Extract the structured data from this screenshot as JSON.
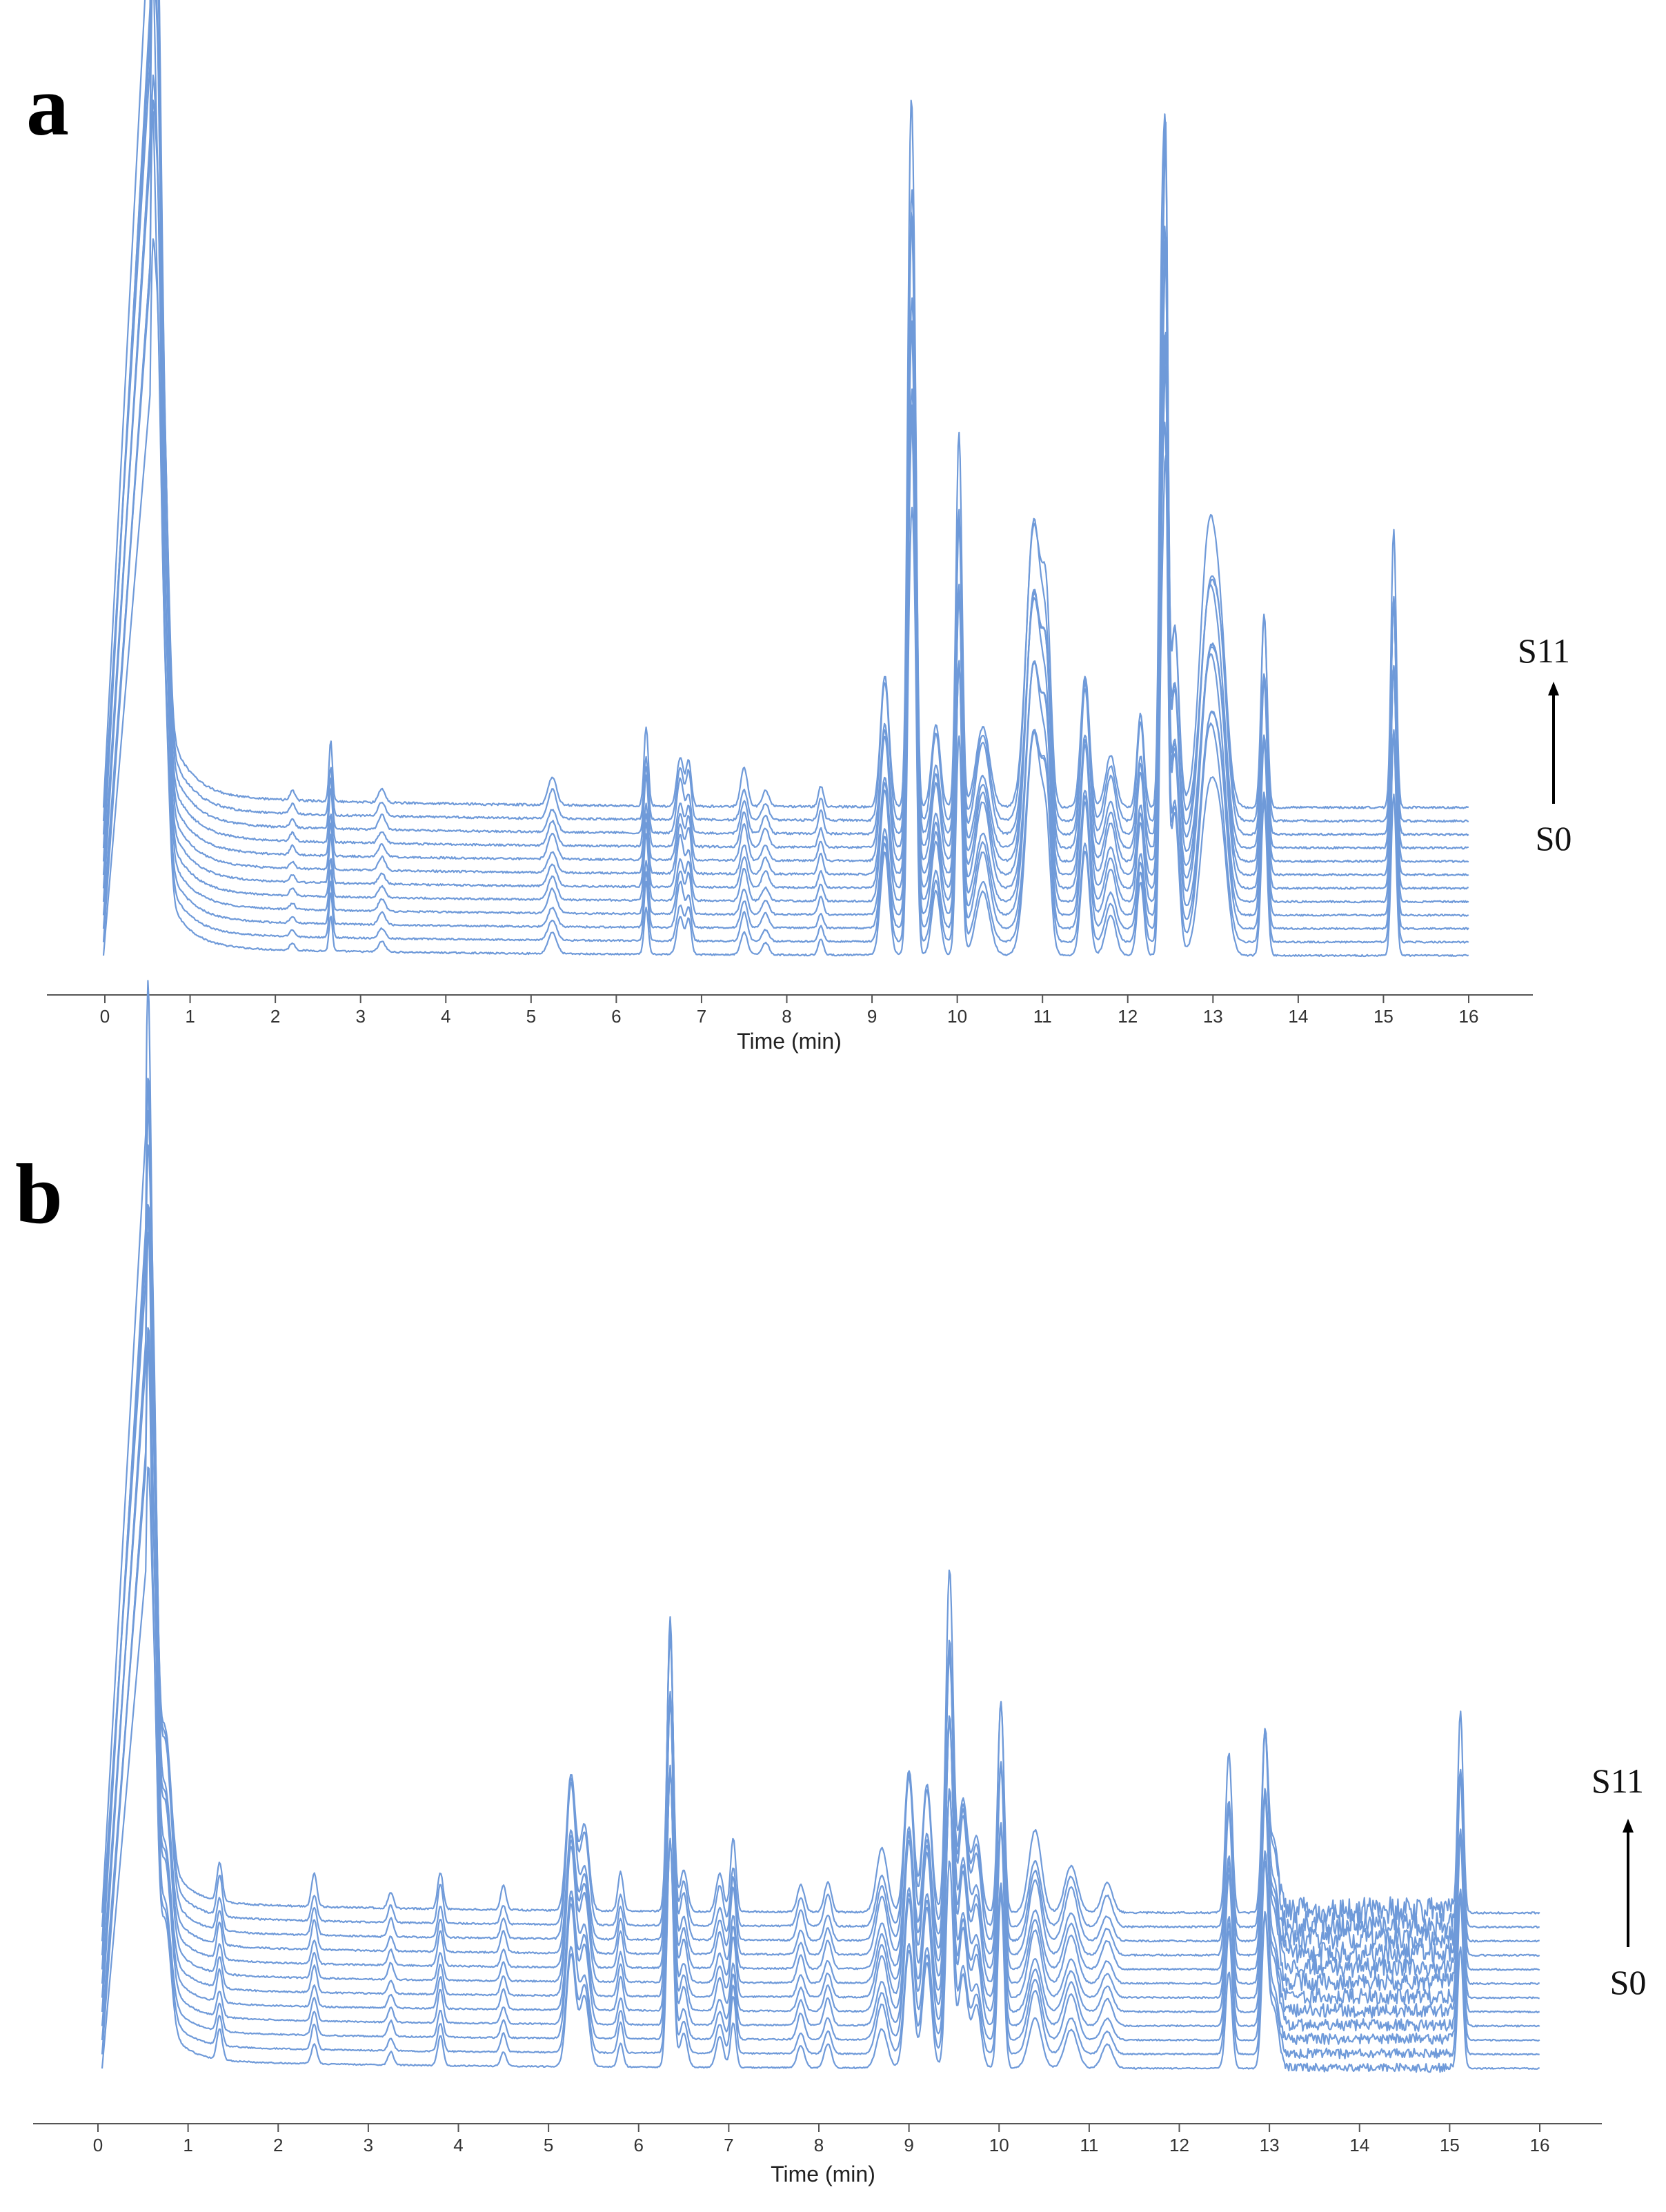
{
  "colors": {
    "trace": "#6f9ad9",
    "axis": "#555555"
  },
  "chart_data": [
    {
      "type": "line",
      "panel_label": "a",
      "xlabel": "Time (min)",
      "xlim": [
        0,
        16
      ],
      "xticks": [
        0,
        1,
        2,
        3,
        4,
        5,
        6,
        7,
        8,
        9,
        10,
        11,
        12,
        13,
        14,
        15,
        16
      ],
      "series_count": 12,
      "series_start_label": "S0",
      "series_end_label": "S11",
      "trace_start": 0.0,
      "trace_end": 16.0,
      "baseline_end": 0.53,
      "tail": {
        "base": 0.9,
        "tau": 0.25,
        "floor": 0.07,
        "slope": 0.004
      },
      "peaks": [
        [
          0.55,
          4.2,
          0.035
        ],
        [
          0.62,
          3.6,
          0.04
        ],
        [
          0.7,
          1.4,
          0.05
        ],
        [
          2.2,
          0.05,
          0.03
        ],
        [
          2.65,
          0.3,
          0.02
        ],
        [
          3.25,
          0.08,
          0.04
        ],
        [
          5.25,
          0.15,
          0.05
        ],
        [
          6.35,
          0.4,
          0.025
        ],
        [
          6.75,
          0.3,
          0.04
        ],
        [
          6.85,
          0.25,
          0.03
        ],
        [
          7.5,
          0.2,
          0.04
        ],
        [
          7.75,
          0.1,
          0.04
        ],
        [
          8.4,
          0.12,
          0.03
        ],
        [
          9.15,
          0.7,
          0.05
        ],
        [
          9.45,
          3.0,
          0.035
        ],
        [
          9.5,
          1.8,
          0.03
        ],
        [
          9.75,
          0.45,
          0.05
        ],
        [
          10.02,
          1.9,
          0.035
        ],
        [
          10.3,
          0.5,
          0.08
        ],
        [
          10.9,
          1.6,
          0.09
        ],
        [
          11.05,
          0.8,
          0.05
        ],
        [
          11.5,
          0.85,
          0.05
        ],
        [
          11.8,
          0.3,
          0.06
        ],
        [
          12.15,
          0.5,
          0.04
        ],
        [
          12.4,
          2.6,
          0.03
        ],
        [
          12.45,
          3.0,
          0.025
        ],
        [
          12.55,
          1.0,
          0.05
        ],
        [
          12.95,
          1.35,
          0.1
        ],
        [
          13.1,
          0.7,
          0.08
        ],
        [
          13.6,
          1.1,
          0.035
        ],
        [
          15.12,
          1.45,
          0.03
        ]
      ],
      "noise_ranges": []
    },
    {
      "type": "line",
      "panel_label": "b",
      "xlabel": "Time (min)",
      "xlim": [
        0,
        16
      ],
      "xticks": [
        0,
        1,
        2,
        3,
        4,
        5,
        6,
        7,
        8,
        9,
        10,
        11,
        12,
        13,
        14,
        15,
        16
      ],
      "series_count": 12,
      "series_start_label": "S0",
      "series_end_label": "S11",
      "trace_start": 0.0,
      "trace_end": 16.0,
      "baseline_end": 0.53,
      "tail": {
        "base": 0.9,
        "tau": 0.22,
        "floor": 0.08,
        "slope": 0.003
      },
      "peaks": [
        [
          0.55,
          4.6,
          0.035
        ],
        [
          0.62,
          2.8,
          0.04
        ],
        [
          0.75,
          0.9,
          0.06
        ],
        [
          1.35,
          0.25,
          0.03
        ],
        [
          2.4,
          0.2,
          0.03
        ],
        [
          3.25,
          0.12,
          0.03
        ],
        [
          3.8,
          0.25,
          0.03
        ],
        [
          4.5,
          0.15,
          0.03
        ],
        [
          5.25,
          1.05,
          0.05
        ],
        [
          5.4,
          0.6,
          0.05
        ],
        [
          5.8,
          0.25,
          0.03
        ],
        [
          6.35,
          2.2,
          0.035
        ],
        [
          6.5,
          0.3,
          0.04
        ],
        [
          6.9,
          0.25,
          0.04
        ],
        [
          7.05,
          0.45,
          0.03
        ],
        [
          7.8,
          0.2,
          0.04
        ],
        [
          8.1,
          0.2,
          0.04
        ],
        [
          8.7,
          0.4,
          0.06
        ],
        [
          9.0,
          1.1,
          0.05
        ],
        [
          9.2,
          0.9,
          0.05
        ],
        [
          9.45,
          2.2,
          0.04
        ],
        [
          9.6,
          0.9,
          0.05
        ],
        [
          9.75,
          0.55,
          0.05
        ],
        [
          10.02,
          1.4,
          0.035
        ],
        [
          10.4,
          0.5,
          0.07
        ],
        [
          10.8,
          0.35,
          0.07
        ],
        [
          11.2,
          0.2,
          0.06
        ],
        [
          12.55,
          1.0,
          0.035
        ],
        [
          12.95,
          1.35,
          0.035
        ],
        [
          13.05,
          0.5,
          0.05
        ],
        [
          15.12,
          1.3,
          0.03
        ]
      ],
      "noise_ranges": [
        [
          13.1,
          15.05,
          0.12
        ]
      ]
    }
  ]
}
